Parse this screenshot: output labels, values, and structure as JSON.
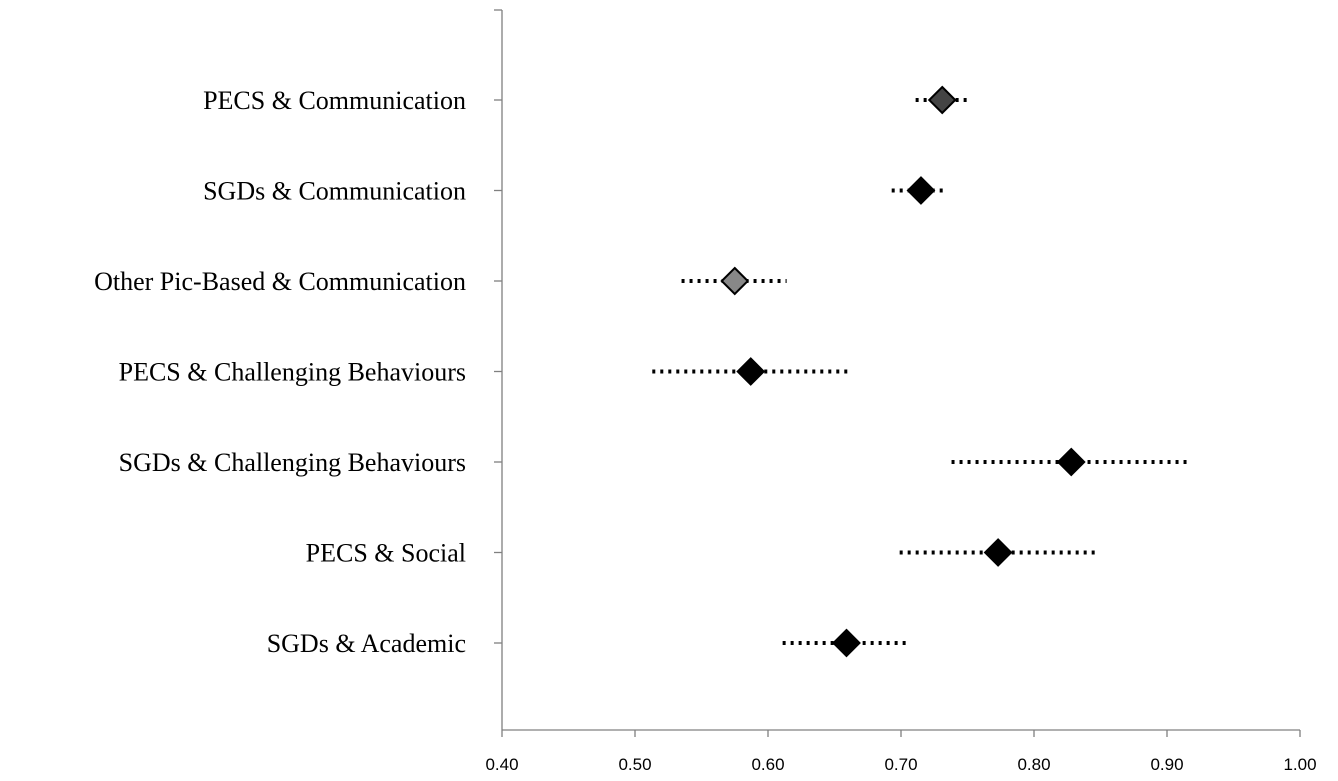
{
  "chart_data": {
    "type": "scatter",
    "style": "forest-plot",
    "title": "",
    "xlabel": "",
    "ylabel": "",
    "xlim": [
      0.4,
      1.0
    ],
    "x_ticks": [
      "0.40",
      "0.50",
      "0.60",
      "0.70",
      "0.80",
      "0.90",
      "1.00"
    ],
    "grid": false,
    "legend": "none",
    "marker_color": "#000000",
    "categories": [
      "PECS & Communication",
      "SGDs & Communication",
      "Other Pic-Based & Communication",
      "PECS & Challenging Behaviours",
      "SGDs & Challenging Behaviours",
      "PECS & Social",
      "SGDs & Academic"
    ],
    "points": [
      {
        "estimate": 0.731,
        "lower": 0.711,
        "upper": 0.75,
        "marker_fill": "#444444"
      },
      {
        "estimate": 0.715,
        "lower": 0.693,
        "upper": 0.735,
        "marker_fill": "#000000"
      },
      {
        "estimate": 0.575,
        "lower": 0.535,
        "upper": 0.614,
        "marker_fill": "#888888"
      },
      {
        "estimate": 0.587,
        "lower": 0.513,
        "upper": 0.662,
        "marker_fill": "#000000"
      },
      {
        "estimate": 0.828,
        "lower": 0.738,
        "upper": 0.916,
        "marker_fill": "#000000"
      },
      {
        "estimate": 0.773,
        "lower": 0.699,
        "upper": 0.846,
        "marker_fill": "#000000"
      },
      {
        "estimate": 0.659,
        "lower": 0.611,
        "upper": 0.704,
        "marker_fill": "#000000"
      }
    ]
  }
}
